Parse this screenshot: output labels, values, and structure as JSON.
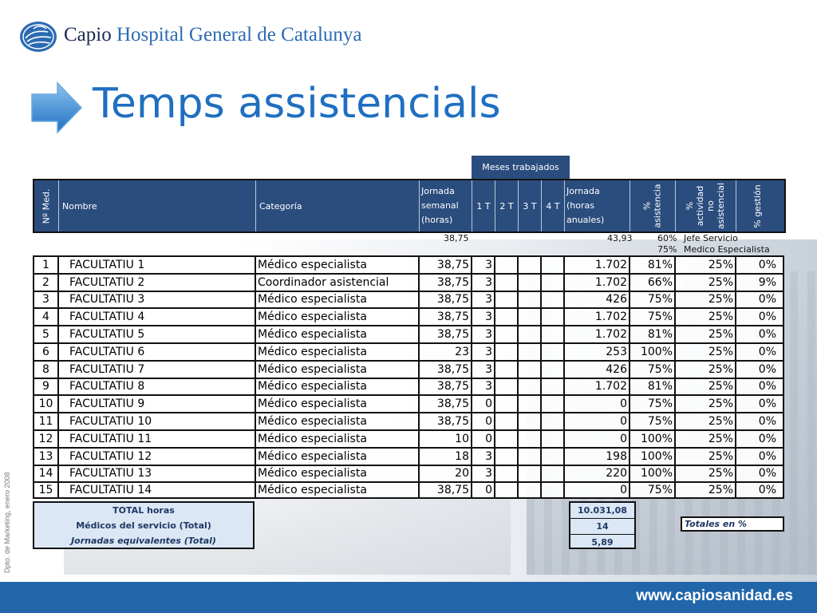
{
  "brand": {
    "name_part1": "Capio ",
    "name_part2": "Hospital General de Catalunya",
    "logo_icon": "hand-globe-logo",
    "color": "#2c6bb3"
  },
  "title": "Temps assistencials",
  "side_note": "Dpto. de Marketing, enero 2008",
  "footer_url": "www.capiosanidad.es",
  "table": {
    "group_header": "Meses trabajados",
    "headers": {
      "num": "Nº Med.",
      "name": "Nombre",
      "category": "Categoría",
      "weekly": "Jornada\nsemanal\n(horas)",
      "q1": "1 T",
      "q2": "2 T",
      "q3": "3 T",
      "q4": "4 T",
      "annual": "Jornada\n(horas\nanuales)",
      "pct_assist": "%\nasistencia",
      "pct_non": "%\nactividad\nno\nasistencial",
      "pct_mgmt": "% gestión"
    },
    "reference": {
      "weekly": "38,75",
      "annual": "43,93",
      "pct1": "60%",
      "label1": "Jefe Servicio",
      "pct2": "75%",
      "label2": "Medico Especialista"
    },
    "rows": [
      {
        "num": "1",
        "name": "FACULTATIU 1",
        "cat": "Médico especialista",
        "weekly": "38,75",
        "q1": "3",
        "annual": "1.702",
        "assist": "81%",
        "non": "25%",
        "mgmt": "0%"
      },
      {
        "num": "2",
        "name": "FACULTATIU 2",
        "cat": "Coordinador asistencial",
        "weekly": "38,75",
        "q1": "3",
        "annual": "1.702",
        "assist": "66%",
        "non": "25%",
        "mgmt": "9%"
      },
      {
        "num": "3",
        "name": "FACULTATIU 3",
        "cat": "Médico especialista",
        "weekly": "38,75",
        "q1": "3",
        "annual": "426",
        "assist": "75%",
        "non": "25%",
        "mgmt": "0%"
      },
      {
        "num": "4",
        "name": "FACULTATIU 4",
        "cat": "Médico especialista",
        "weekly": "38,75",
        "q1": "3",
        "annual": "1.702",
        "assist": "75%",
        "non": "25%",
        "mgmt": "0%"
      },
      {
        "num": "5",
        "name": "FACULTATIU 5",
        "cat": "Médico especialista",
        "weekly": "38,75",
        "q1": "3",
        "annual": "1.702",
        "assist": "81%",
        "non": "25%",
        "mgmt": "0%"
      },
      {
        "num": "6",
        "name": "FACULTATIU 6",
        "cat": "Médico especialista",
        "weekly": "23",
        "q1": "3",
        "annual": "253",
        "assist": "100%",
        "non": "25%",
        "mgmt": "0%"
      },
      {
        "num": "8",
        "name": "FACULTATIU 7",
        "cat": "Médico especialista",
        "weekly": "38,75",
        "q1": "3",
        "annual": "426",
        "assist": "75%",
        "non": "25%",
        "mgmt": "0%"
      },
      {
        "num": "9",
        "name": "FACULTATIU 8",
        "cat": "Médico especialista",
        "weekly": "38,75",
        "q1": "3",
        "annual": "1.702",
        "assist": "81%",
        "non": "25%",
        "mgmt": "0%"
      },
      {
        "num": "10",
        "name": "FACULTATIU 9",
        "cat": "Médico especialista",
        "weekly": "38,75",
        "q1": "0",
        "annual": "0",
        "assist": "75%",
        "non": "25%",
        "mgmt": "0%"
      },
      {
        "num": "11",
        "name": "FACULTATIU 10",
        "cat": "Médico especialista",
        "weekly": "38,75",
        "q1": "0",
        "annual": "0",
        "assist": "75%",
        "non": "25%",
        "mgmt": "0%"
      },
      {
        "num": "12",
        "name": "FACULTATIU 11",
        "cat": "Médico especialista",
        "weekly": "10",
        "q1": "0",
        "annual": "0",
        "assist": "100%",
        "non": "25%",
        "mgmt": "0%"
      },
      {
        "num": "13",
        "name": "FACULTATIU 12",
        "cat": "Médico especialista",
        "weekly": "18",
        "q1": "3",
        "annual": "198",
        "assist": "100%",
        "non": "25%",
        "mgmt": "0%"
      },
      {
        "num": "14",
        "name": "FACULTATIU 13",
        "cat": "Médico especialista",
        "weekly": "20",
        "q1": "3",
        "annual": "220",
        "assist": "100%",
        "non": "25%",
        "mgmt": "0%"
      },
      {
        "num": "15",
        "name": "FACULTATIU 14",
        "cat": "Médico especialista",
        "weekly": "38,75",
        "q1": "0",
        "annual": "0",
        "assist": "75%",
        "non": "25%",
        "mgmt": "0%"
      }
    ],
    "totals": {
      "total_hours_label": "TOTAL horas",
      "total_hours": "10.031,08",
      "doctors_label": "Médicos del servicio (Total)",
      "doctors": "14",
      "fte_label": "Jornadas equivalentes (Total)",
      "fte": "5,89",
      "pct_label": "Totales en %"
    }
  }
}
